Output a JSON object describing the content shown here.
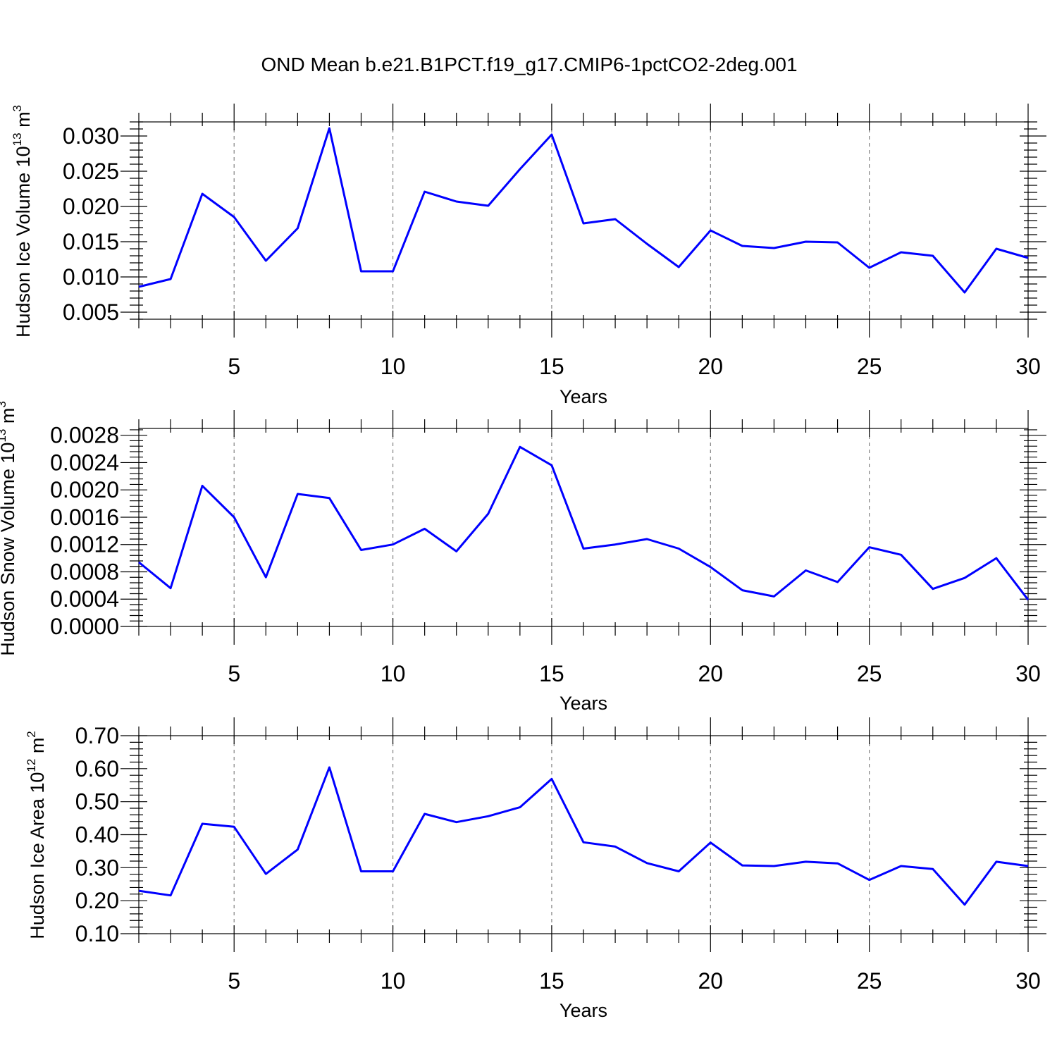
{
  "figure": {
    "title": "OND Mean b.e21.B1PCT.f19_g17.CMIP6-1pctCO2-2deg.001"
  },
  "colors": {
    "series": "#0000ff",
    "grid": "#808080",
    "axis": "#000000"
  },
  "chart_data": [
    {
      "type": "line",
      "ylabel_main": "Hudson Ice Volume 10",
      "ylabel_exp": "13",
      "ylabel_unit": " m",
      "ylabel_unit_exp": "3",
      "xlabel": "Years",
      "xlim": [
        2,
        30
      ],
      "ylim": [
        0.004,
        0.032
      ],
      "xticks": [
        5,
        10,
        15,
        20,
        25,
        30
      ],
      "xtick_labels": [
        "5",
        "10",
        "15",
        "20",
        "25",
        "30"
      ],
      "yticks": [
        0.005,
        0.01,
        0.015,
        0.02,
        0.025,
        0.03
      ],
      "ytick_labels": [
        "0.005",
        "0.010",
        "0.015",
        "0.020",
        "0.025",
        "0.030"
      ],
      "grid": "vertical dashed at major x ticks",
      "x": [
        2,
        3,
        4,
        5,
        6,
        7,
        8,
        9,
        10,
        11,
        12,
        13,
        14,
        15,
        16,
        17,
        18,
        19,
        20,
        21,
        22,
        23,
        24,
        25,
        26,
        27,
        28,
        29,
        30
      ],
      "y": [
        0.0086,
        0.0097,
        0.0218,
        0.0185,
        0.0123,
        0.0169,
        0.0311,
        0.0108,
        0.0108,
        0.0221,
        0.0207,
        0.0201,
        0.0253,
        0.0302,
        0.0176,
        0.0182,
        0.0147,
        0.0114,
        0.0166,
        0.0144,
        0.0141,
        0.015,
        0.0149,
        0.0113,
        0.0135,
        0.013,
        0.0078,
        0.014,
        0.0127
      ]
    },
    {
      "type": "line",
      "ylabel_main": "Hudson Snow Volume 10",
      "ylabel_exp": "13",
      "ylabel_unit": " m",
      "ylabel_unit_exp": "3",
      "xlabel": "Years",
      "xlim": [
        2,
        30
      ],
      "ylim": [
        0.0,
        0.0029
      ],
      "xticks": [
        5,
        10,
        15,
        20,
        25,
        30
      ],
      "xtick_labels": [
        "5",
        "10",
        "15",
        "20",
        "25",
        "30"
      ],
      "yticks": [
        0.0,
        0.0004,
        0.0008,
        0.0012,
        0.0016,
        0.002,
        0.0024,
        0.0028
      ],
      "ytick_labels": [
        "0.0000",
        "0.0004",
        "0.0008",
        "0.0012",
        "0.0016",
        "0.0020",
        "0.0024",
        "0.0028"
      ],
      "grid": "vertical dashed at major x ticks",
      "x": [
        2,
        3,
        4,
        5,
        6,
        7,
        8,
        9,
        10,
        11,
        12,
        13,
        14,
        15,
        16,
        17,
        18,
        19,
        20,
        21,
        22,
        23,
        24,
        25,
        26,
        27,
        28,
        29,
        30
      ],
      "y": [
        0.00094,
        0.00056,
        0.00206,
        0.0016,
        0.00072,
        0.00194,
        0.00188,
        0.00112,
        0.0012,
        0.00143,
        0.0011,
        0.00165,
        0.00263,
        0.00236,
        0.00114,
        0.0012,
        0.00128,
        0.00114,
        0.00087,
        0.00053,
        0.00044,
        0.00082,
        0.00065,
        0.00116,
        0.00105,
        0.00055,
        0.00071,
        0.001,
        0.00039
      ]
    },
    {
      "type": "line",
      "ylabel_main": "Hudson Ice Area 10",
      "ylabel_exp": "12",
      "ylabel_unit": " m",
      "ylabel_unit_exp": "2",
      "xlabel": "Years",
      "xlim": [
        2,
        30
      ],
      "ylim": [
        0.1,
        0.7
      ],
      "xticks": [
        5,
        10,
        15,
        20,
        25,
        30
      ],
      "xtick_labels": [
        "5",
        "10",
        "15",
        "20",
        "25",
        "30"
      ],
      "yticks": [
        0.1,
        0.2,
        0.3,
        0.4,
        0.5,
        0.6,
        0.7
      ],
      "ytick_labels": [
        "0.10",
        "0.20",
        "0.30",
        "0.40",
        "0.50",
        "0.60",
        "0.70"
      ],
      "grid": "vertical dashed at major x ticks",
      "x": [
        2,
        3,
        4,
        5,
        6,
        7,
        8,
        9,
        10,
        11,
        12,
        13,
        14,
        15,
        16,
        17,
        18,
        19,
        20,
        21,
        22,
        23,
        24,
        25,
        26,
        27,
        28,
        29,
        30
      ],
      "y": [
        0.23,
        0.216,
        0.433,
        0.424,
        0.281,
        0.355,
        0.604,
        0.289,
        0.289,
        0.463,
        0.438,
        0.456,
        0.483,
        0.569,
        0.377,
        0.364,
        0.314,
        0.289,
        0.376,
        0.307,
        0.305,
        0.318,
        0.313,
        0.263,
        0.305,
        0.296,
        0.188,
        0.318,
        0.305
      ]
    }
  ]
}
